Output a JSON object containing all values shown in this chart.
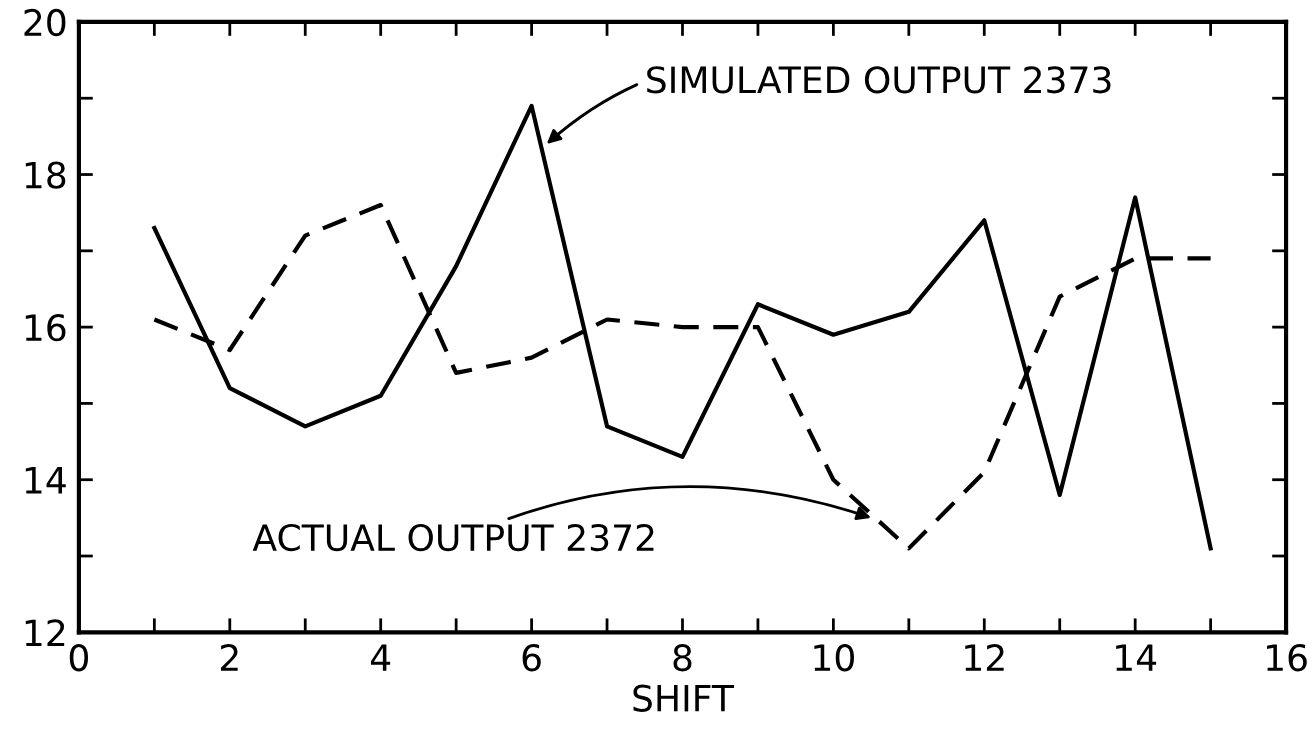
{
  "chart_data": {
    "type": "line",
    "xlabel": "SHIFT",
    "x": [
      1,
      2,
      3,
      4,
      5,
      6,
      7,
      8,
      9,
      10,
      11,
      12,
      13,
      14,
      15
    ],
    "series": [
      {
        "color": "#000000",
        "line_style": "solid",
        "values": [
          17.3,
          15.2,
          14.7,
          15.1,
          16.8,
          18.9,
          14.7,
          14.3,
          16.3,
          15.9,
          16.2,
          17.4,
          13.8,
          17.7,
          13.1
        ]
      },
      {
        "color": "#000000",
        "line_style": "dashed",
        "values": [
          16.1,
          15.7,
          17.2,
          17.6,
          15.4,
          15.6,
          16.1,
          16.0,
          16.0,
          14.0,
          13.1,
          14.1,
          16.4,
          16.9,
          16.9
        ]
      }
    ],
    "annotations": [
      {
        "text": "SIMULATED OUTPUT 2373",
        "x": 6.2,
        "y": 18.4
      },
      {
        "text": "ACTUAL OUTPUT 2372",
        "x": 10.5,
        "y": 13.5
      }
    ],
    "xlim": [
      0,
      16
    ],
    "ylim": [
      12,
      20
    ],
    "xticks": [
      0,
      {
        "value": 1,
        "label": null
      },
      2,
      {
        "value": 3,
        "label": null
      },
      4,
      {
        "value": 5,
        "label": null
      },
      6,
      {
        "value": 7,
        "label": null
      },
      8,
      {
        "value": 9,
        "label": null
      },
      10,
      {
        "value": 11,
        "label": null
      },
      12,
      {
        "value": 13,
        "label": null
      },
      14,
      {
        "value": 15,
        "label": null
      },
      16
    ],
    "yticks": [
      12,
      {
        "value": 13,
        "label": null
      },
      14,
      {
        "value": 15,
        "label": null
      },
      16,
      {
        "value": 17,
        "label": null
      },
      18,
      {
        "value": 19,
        "label": null
      },
      20
    ],
    "grid": false,
    "legend": false
  }
}
